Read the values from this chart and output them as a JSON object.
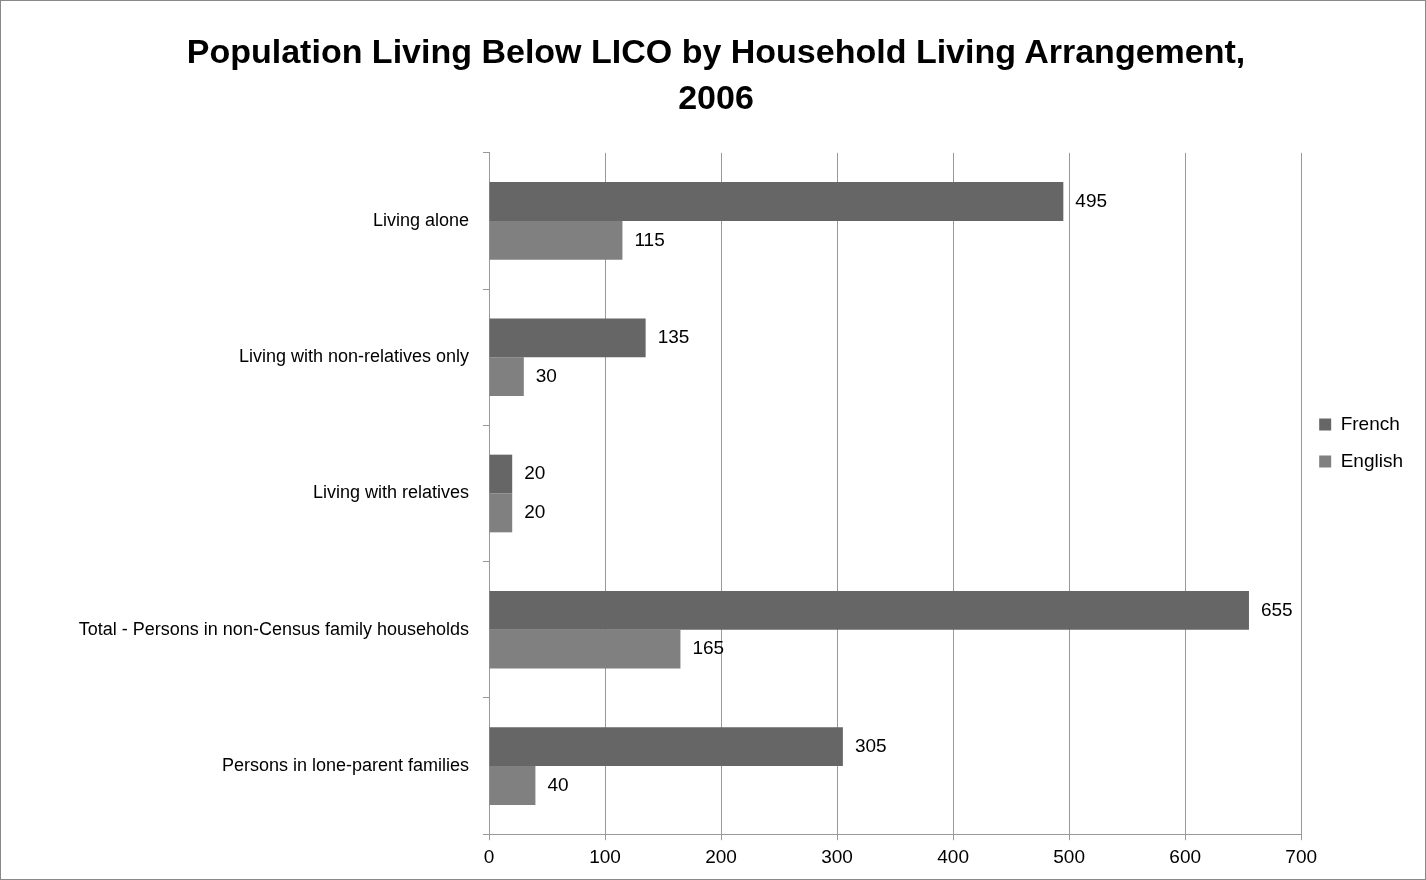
{
  "chart_data": {
    "type": "bar",
    "orientation": "horizontal",
    "title": "Population Living Below LICO by Household Living Arrangement, 2006",
    "categories": [
      "Living alone",
      "Living with non-relatives only",
      "Living with relatives",
      "Total - Persons in non-Census family households",
      "Persons in lone-parent families"
    ],
    "series": [
      {
        "name": "French",
        "color": "#666666",
        "values": [
          495,
          135,
          20,
          655,
          305
        ]
      },
      {
        "name": "English",
        "color": "#808080",
        "values": [
          115,
          30,
          20,
          165,
          40
        ]
      }
    ],
    "xlim": [
      0,
      700
    ],
    "xticks": [
      0,
      100,
      200,
      300,
      400,
      500,
      600,
      700
    ],
    "grid": "x",
    "legend": "right",
    "data_labels": true
  }
}
